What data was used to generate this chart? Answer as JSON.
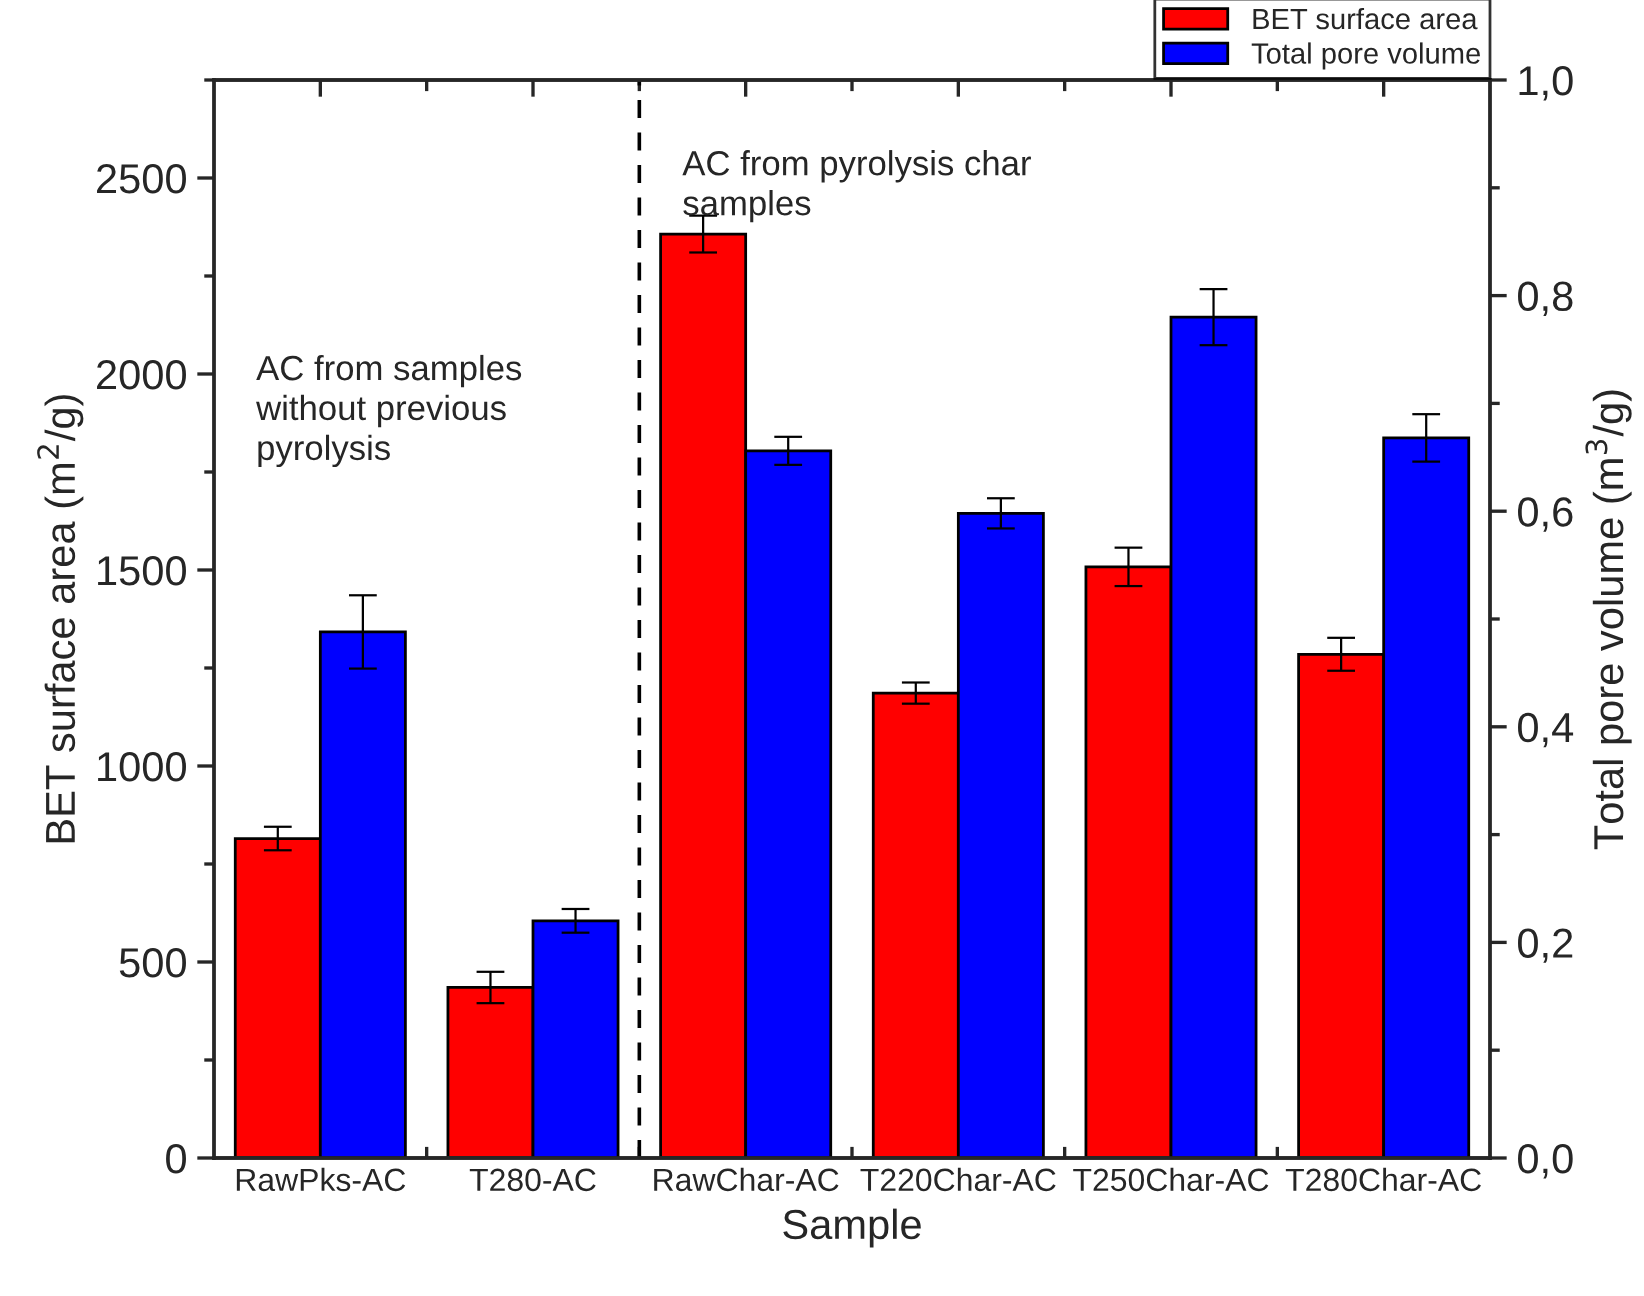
{
  "chart_data": {
    "type": "bar",
    "xlabel": "Sample",
    "ylabel": "BET surface area (m$^{2}$/g)",
    "y2label": "Total pore volume (m$^{3}$/g)",
    "categories": [
      "RawPks-AC",
      "T280-AC",
      "RawChar-AC",
      "T220Char-AC",
      "T250Char-AC",
      "T280Char-AC"
    ],
    "series": [
      {
        "name": "BET surface area",
        "color": "#ff0000",
        "values": [
          815,
          435,
          2357,
          1186,
          1508,
          1285
        ],
        "errors": [
          30,
          40,
          47,
          27,
          49,
          42
        ]
      },
      {
        "name": "Total pore volume",
        "color": "#0000ff",
        "axis": "y2",
        "values": [
          0.488,
          0.22,
          0.656,
          0.598,
          0.78,
          0.668
        ],
        "errors": [
          0.034,
          0.011,
          0.013,
          0.014,
          0.026,
          0.022
        ]
      }
    ],
    "ylim": [
      0,
      2750
    ],
    "yticks": [
      0,
      500,
      1000,
      1500,
      2000,
      2500
    ],
    "y2lim": [
      0,
      1.0
    ],
    "y2ticks": [
      {
        "value": 0,
        "label": "0,0"
      },
      {
        "value": 0.2,
        "label": "0,2"
      },
      {
        "value": 0.4,
        "label": "0,4"
      },
      {
        "value": 0.6,
        "label": "0,6"
      },
      {
        "value": 0.8,
        "label": "0,8"
      },
      {
        "value": 1.0,
        "label": "1,0"
      }
    ],
    "annotations": [
      "AC from samples\nwithout previous\npyrolysis",
      "AC from pyrolysis char\nsamples"
    ],
    "legend": "top right",
    "grid": false
  }
}
